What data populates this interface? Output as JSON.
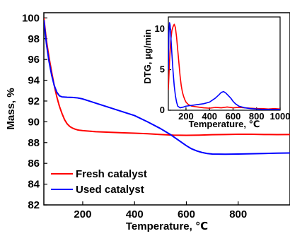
{
  "chart_data": [
    {
      "type": "line",
      "xlabel": "Temperature, ℃",
      "ylabel": "Mass, %",
      "xlim": [
        50,
        1000
      ],
      "ylim": [
        82,
        100.5
      ],
      "xticks": [
        200,
        400,
        600,
        800
      ],
      "yticks": [
        82,
        84,
        86,
        88,
        90,
        92,
        94,
        96,
        98,
        100
      ],
      "legend_position": "bottom-left",
      "series": [
        {
          "name": "Fresh catalyst",
          "color": "#ff0000",
          "x": [
            50,
            60,
            70,
            80,
            90,
            100,
            110,
            120,
            130,
            140,
            150,
            160,
            170,
            180,
            190,
            200,
            250,
            300,
            350,
            400,
            450,
            500,
            550,
            600,
            650,
            700,
            750,
            800,
            850,
            900,
            950,
            1000
          ],
          "y": [
            100.0,
            97.8,
            96.2,
            94.8,
            93.5,
            92.4,
            91.5,
            90.8,
            90.2,
            89.8,
            89.55,
            89.4,
            89.3,
            89.22,
            89.18,
            89.15,
            89.05,
            89.0,
            88.95,
            88.9,
            88.85,
            88.78,
            88.72,
            88.7,
            88.72,
            88.76,
            88.78,
            88.8,
            88.8,
            88.78,
            88.77,
            88.78
          ]
        },
        {
          "name": "Used catalyst",
          "color": "#0000ff",
          "x": [
            50,
            60,
            70,
            80,
            90,
            100,
            110,
            120,
            130,
            140,
            160,
            180,
            200,
            250,
            300,
            350,
            400,
            450,
            500,
            520,
            540,
            560,
            580,
            600,
            620,
            640,
            660,
            680,
            700,
            750,
            800,
            850,
            900,
            950,
            1000
          ],
          "y": [
            99.8,
            97.5,
            95.8,
            94.5,
            93.5,
            92.85,
            92.5,
            92.4,
            92.38,
            92.36,
            92.35,
            92.3,
            92.2,
            91.8,
            91.4,
            91.0,
            90.6,
            90.0,
            89.35,
            89.05,
            88.75,
            88.4,
            88.05,
            87.7,
            87.4,
            87.2,
            87.05,
            86.95,
            86.9,
            86.88,
            86.9,
            86.92,
            86.95,
            86.98,
            87.0
          ]
        }
      ]
    },
    {
      "type": "line",
      "xlabel": "Temperature, ℃",
      "ylabel": "DTG, μg/min",
      "xlim": [
        50,
        1000
      ],
      "ylim": [
        0,
        11.5
      ],
      "xticks": [
        200,
        400,
        600,
        800,
        1000
      ],
      "yticks": [
        0,
        5,
        10
      ],
      "series": [
        {
          "name": "Fresh catalyst",
          "color": "#ff0000",
          "x": [
            50,
            60,
            70,
            80,
            90,
            100,
            110,
            120,
            130,
            140,
            150,
            160,
            170,
            180,
            190,
            200,
            220,
            250,
            300,
            350,
            400,
            450,
            500,
            550,
            600,
            650,
            700,
            750,
            800,
            850,
            900,
            950,
            1000
          ],
          "y": [
            2.5,
            6.0,
            8.5,
            9.8,
            10.3,
            10.6,
            10.2,
            9.0,
            7.4,
            5.8,
            4.2,
            3.0,
            2.2,
            1.7,
            1.3,
            1.0,
            0.7,
            0.5,
            0.4,
            0.3,
            0.25,
            0.35,
            0.3,
            0.4,
            0.3,
            0.35,
            0.3,
            0.25,
            0.2,
            0.2,
            0.15,
            0.2,
            0.15
          ]
        },
        {
          "name": "Used catalyst",
          "color": "#0000ff",
          "x": [
            50,
            55,
            60,
            65,
            70,
            80,
            90,
            100,
            110,
            120,
            130,
            150,
            180,
            200,
            250,
            300,
            350,
            400,
            450,
            480,
            500,
            520,
            540,
            560,
            580,
            600,
            620,
            650,
            700,
            750,
            800,
            850,
            900,
            950,
            1000
          ],
          "y": [
            5.0,
            9.5,
            10.8,
            10.5,
            9.4,
            7.0,
            4.8,
            3.0,
            1.8,
            1.0,
            0.5,
            0.3,
            0.4,
            0.5,
            0.6,
            0.7,
            0.8,
            1.0,
            1.5,
            1.9,
            2.2,
            2.3,
            2.1,
            1.8,
            1.5,
            1.1,
            0.8,
            0.5,
            0.3,
            0.2,
            0.15,
            0.1,
            0.1,
            0.1,
            0.1
          ]
        }
      ]
    }
  ]
}
